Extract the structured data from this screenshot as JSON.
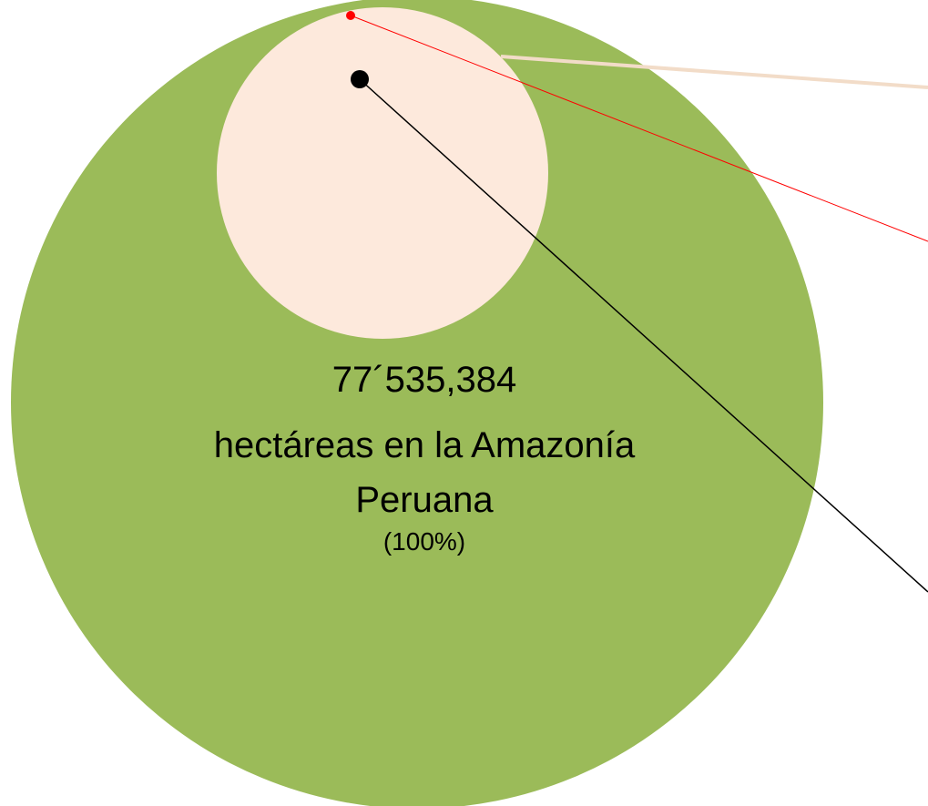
{
  "diagram": {
    "label": {
      "lines": [
        "77´535,384",
        "hectáreas en la Amazonía",
        "Peruana"
      ],
      "percent": "(100%)"
    }
  }
}
